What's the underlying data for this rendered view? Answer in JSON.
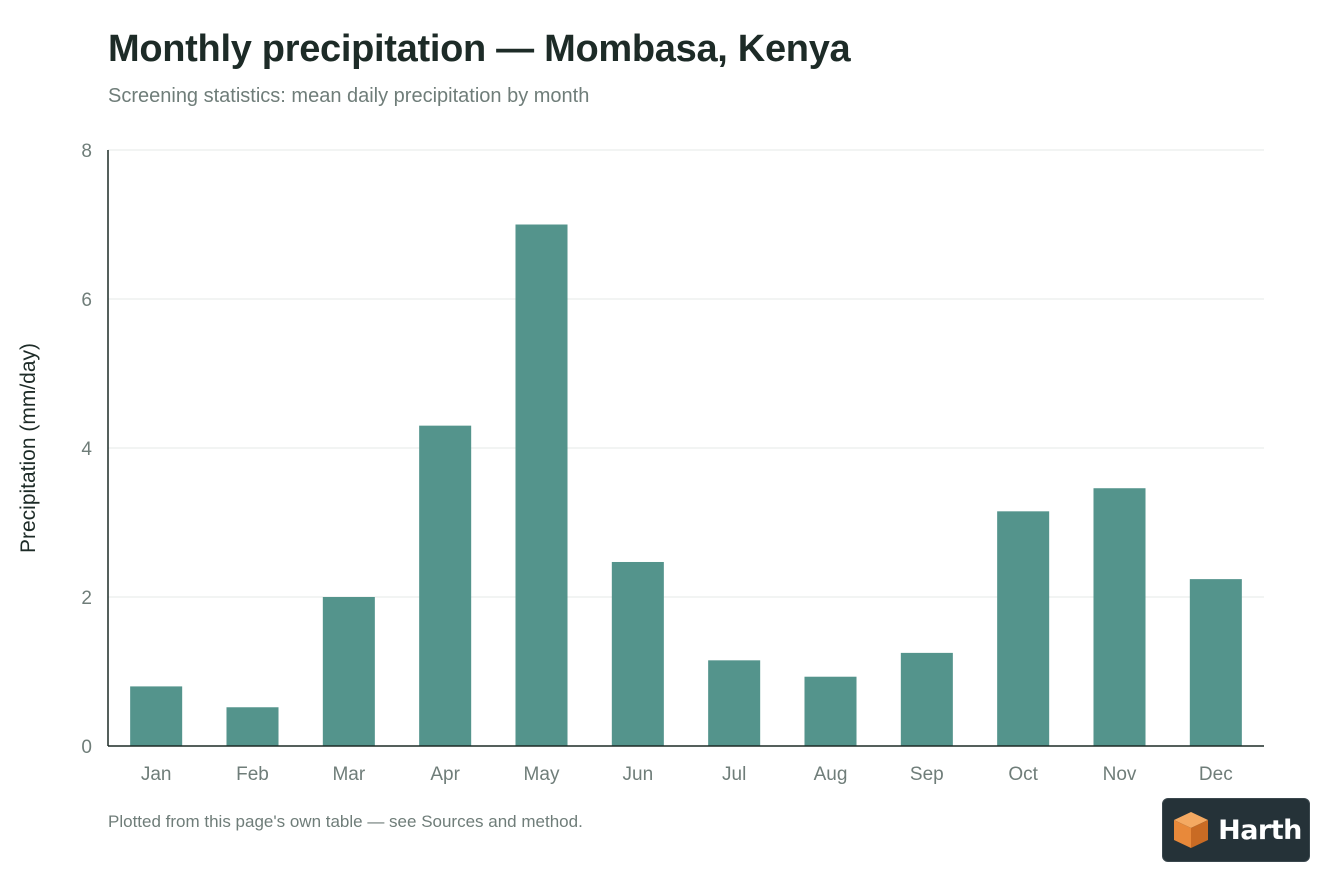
{
  "chart_data": {
    "type": "bar",
    "title": "Monthly precipitation — Mombasa, Kenya",
    "subtitle": "Screening statistics: mean daily precipitation by month",
    "xlabel": "",
    "ylabel": "Precipitation (mm/day)",
    "categories": [
      "Jan",
      "Feb",
      "Mar",
      "Apr",
      "May",
      "Jun",
      "Jul",
      "Aug",
      "Sep",
      "Oct",
      "Nov",
      "Dec"
    ],
    "values": [
      0.8,
      0.52,
      2.0,
      4.3,
      7.0,
      2.47,
      1.15,
      0.93,
      1.25,
      3.15,
      3.46,
      2.24
    ],
    "ylim": [
      0,
      8
    ],
    "yticks": [
      0,
      2,
      4,
      6,
      8
    ],
    "grid": true,
    "legend": "none",
    "bar_color": "#54948c"
  },
  "footnote": "Plotted from this page's own table — see Sources and method.",
  "badge": {
    "icon": "cube-logo-icon",
    "label": "Harth",
    "icon_colors": [
      "#f4a962",
      "#e8893a",
      "#c96b24"
    ]
  }
}
